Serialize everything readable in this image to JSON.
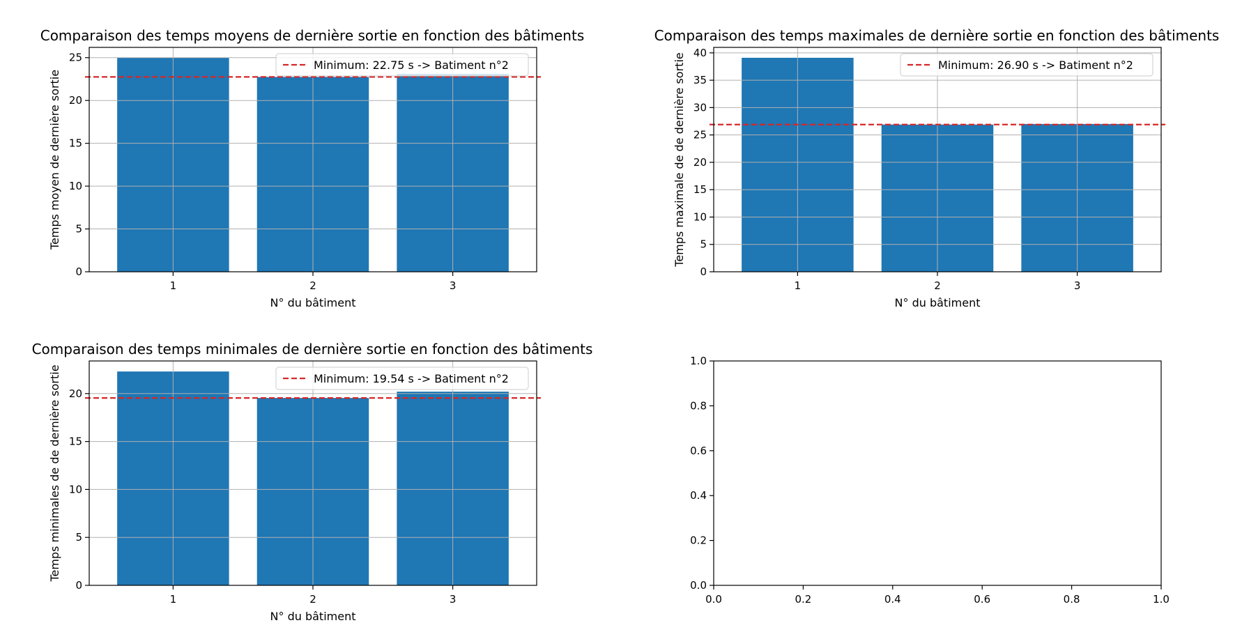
{
  "figure": {
    "background": "#ffffff"
  },
  "colors": {
    "bar": "#1f77b4",
    "min_line": "#d62728",
    "grid": "#b0b0b0",
    "axis": "#000000"
  },
  "chart_data": [
    {
      "id": "mean",
      "type": "bar",
      "title": "Comparaison des temps moyens de dernière sortie en fonction des bâtiments",
      "xlabel": "N° du bâtiment",
      "ylabel": "Temps moyen de dernière sortie",
      "categories": [
        "1",
        "2",
        "3"
      ],
      "values": [
        25.0,
        22.75,
        23.1
      ],
      "ylim": [
        0,
        26.2
      ],
      "yticks": [
        0,
        5,
        10,
        15,
        20,
        25
      ],
      "grid": true,
      "legend_position": "upper right",
      "hline": {
        "value": 22.75,
        "label": "Minimum: 22.75 s -> Batiment n°2",
        "style": "dashed"
      }
    },
    {
      "id": "max",
      "type": "bar",
      "title": "Comparaison des temps maximales de dernière sortie en fonction des bâtiments",
      "xlabel": "N° du bâtiment",
      "ylabel": "Temps maximale de de dernière sortie",
      "categories": [
        "1",
        "2",
        "3"
      ],
      "values": [
        39.1,
        26.9,
        27.0
      ],
      "ylim": [
        0,
        41.0
      ],
      "yticks": [
        0,
        5,
        10,
        15,
        20,
        25,
        30,
        35,
        40
      ],
      "grid": true,
      "legend_position": "upper right",
      "hline": {
        "value": 26.9,
        "label": "Minimum: 26.90 s -> Batiment n°2",
        "style": "dashed"
      }
    },
    {
      "id": "min",
      "type": "bar",
      "title": "Comparaison des temps minimales de dernière sortie en fonction des bâtiments",
      "xlabel": "N° du bâtiment",
      "ylabel": "Temps minimales de de dernière sortie",
      "categories": [
        "1",
        "2",
        "3"
      ],
      "values": [
        22.3,
        19.54,
        20.2
      ],
      "ylim": [
        0,
        23.4
      ],
      "yticks": [
        0,
        5,
        10,
        15,
        20
      ],
      "grid": true,
      "legend_position": "upper right",
      "hline": {
        "value": 19.54,
        "label": "Minimum: 19.54 s -> Batiment n°2",
        "style": "dashed"
      }
    },
    {
      "id": "empty",
      "type": "scatter",
      "title": "",
      "xlabel": "",
      "ylabel": "",
      "xlim": [
        0,
        1
      ],
      "ylim": [
        0,
        1
      ],
      "xticks": [
        "0.0",
        "0.2",
        "0.4",
        "0.6",
        "0.8",
        "1.0"
      ],
      "yticks": [
        "0.0",
        "0.2",
        "0.4",
        "0.6",
        "0.8",
        "1.0"
      ],
      "grid": false
    }
  ]
}
